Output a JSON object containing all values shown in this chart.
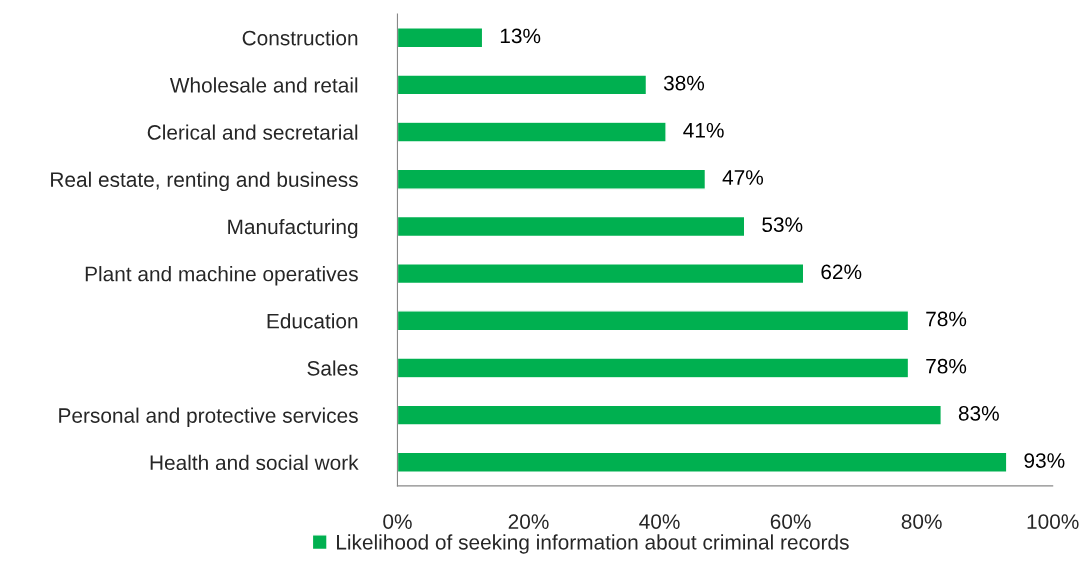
{
  "chart_data": {
    "type": "bar",
    "orientation": "horizontal",
    "categories": [
      "Construction",
      "Wholesale and retail",
      "Clerical and secretarial",
      "Real estate, renting and business",
      "Manufacturing",
      "Plant and machine operatives",
      "Education",
      "Sales",
      "Personal and protective services",
      "Health and social work"
    ],
    "series": [
      {
        "name": "Likelihood of seeking information about criminal records",
        "color": "#00b050",
        "values": [
          13,
          38,
          41,
          47,
          53,
          62,
          78,
          78,
          83,
          93
        ],
        "value_labels": [
          "13%",
          "38%",
          "41%",
          "47%",
          "53%",
          "62%",
          "78%",
          "78%",
          "83%",
          "93%"
        ]
      }
    ],
    "xlim": [
      0,
      100
    ],
    "xticks": [
      {
        "value": 0,
        "label": "0%"
      },
      {
        "value": 20,
        "label": "20%"
      },
      {
        "value": 40,
        "label": "40%"
      },
      {
        "value": 60,
        "label": "60%"
      },
      {
        "value": 80,
        "label": "80%"
      },
      {
        "value": 100,
        "label": "100%"
      }
    ],
    "legend": "bottom"
  }
}
